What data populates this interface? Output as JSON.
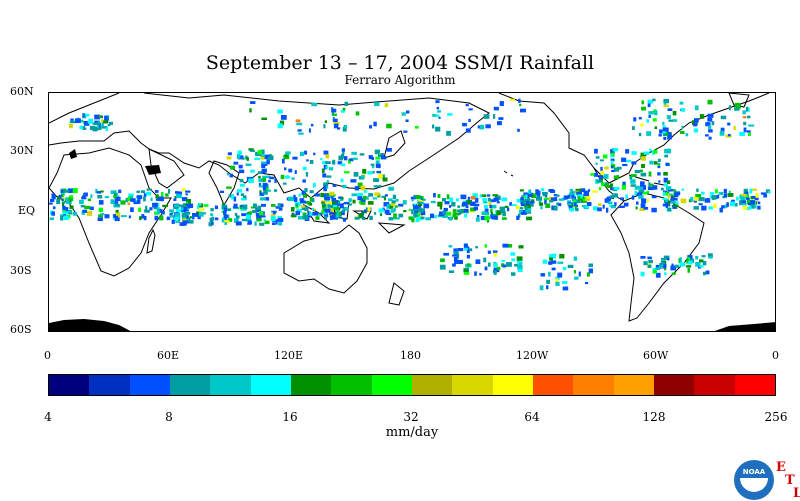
{
  "title": "September 13 – 17, 2004 SSM/I Rainfall",
  "subtitle": "Ferraro Algorithm",
  "lat_labels": [
    "60N",
    "30N",
    "EQ",
    "30S",
    "60S"
  ],
  "lon_labels": [
    "0",
    "60E",
    "120E",
    "180",
    "120W",
    "60W",
    "0"
  ],
  "colorbar": {
    "colors": [
      "#00007f",
      "#0030c0",
      "#0050ff",
      "#009ea0",
      "#00c8c8",
      "#00ffff",
      "#009000",
      "#00c000",
      "#00ff00",
      "#b0b000",
      "#d8d800",
      "#ffff00",
      "#ff5000",
      "#ff8000",
      "#ffa000",
      "#900000",
      "#c80000",
      "#ff0000"
    ],
    "ticks": [
      "4",
      "8",
      "16",
      "32",
      "64",
      "128",
      "256"
    ],
    "units": "mm/day"
  },
  "logo": {
    "name": "noaa-logo",
    "text": "NOAA"
  },
  "corner_letters": [
    "E",
    "T",
    "L"
  ]
}
